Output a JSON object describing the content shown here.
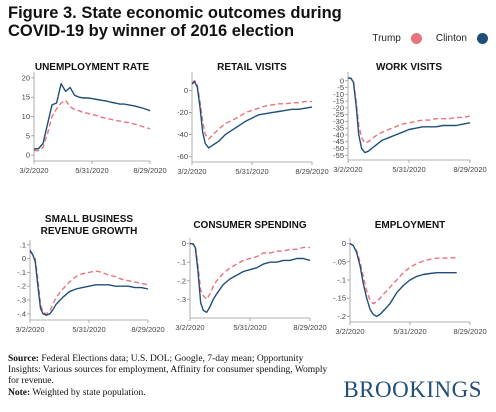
{
  "title": "Figure 3. State economic outcomes during COVID-19 by winner of 2016 election",
  "legend": {
    "trump_label": "Trump",
    "clinton_label": "Clinton"
  },
  "colors": {
    "trump": "#e8737a",
    "clinton": "#1f4e79"
  },
  "footer": {
    "source_label": "Source:",
    "source_text": "Federal Elections data; U.S. DOL; Google, 7-day mean; Opportunity Insights: Various sources for employment, Affinity for consumer spending, Womply for revenue.",
    "note_label": "Note:",
    "note_text": "Weighted by state population."
  },
  "logo": "BROOKINGS",
  "chart_data": [
    {
      "type": "line",
      "title": [
        "UNEMPLOYMENT RATE"
      ],
      "x_ticks": [
        "3/2/2020",
        "5/31/2020",
        "8/29/2020"
      ],
      "x": [
        0,
        7,
        14,
        21,
        28,
        35,
        42,
        49,
        56,
        63,
        70,
        77,
        84,
        91,
        98,
        105,
        112,
        119,
        126,
        133,
        140,
        147,
        154,
        161,
        168,
        175,
        180
      ],
      "ylim": [
        -1,
        21
      ],
      "yticks": [
        0,
        5,
        10,
        15,
        20
      ],
      "ytick_labels": [
        "0",
        "5",
        "10",
        "15",
        "20"
      ],
      "series": [
        {
          "name": "Trump",
          "values": [
            1.2,
            1.2,
            2,
            5.5,
            10,
            12,
            13.5,
            14.2,
            12.5,
            11.8,
            11.5,
            11,
            10.8,
            10.5,
            10.2,
            9.8,
            9.5,
            9.3,
            9,
            8.8,
            8.6,
            8.4,
            8.1,
            7.8,
            7.4,
            7.1,
            6.8
          ]
        },
        {
          "name": "Clinton",
          "values": [
            1.6,
            1.7,
            3,
            8,
            13,
            13.5,
            18.5,
            16.5,
            17.5,
            15.5,
            15,
            14.8,
            14.8,
            14.6,
            14.4,
            14.2,
            14,
            13.7,
            13.5,
            13.2,
            13.2,
            13,
            12.8,
            12.5,
            12.2,
            11.8,
            11.5
          ]
        }
      ]
    },
    {
      "type": "line",
      "title": [
        "RETAIL VISITS"
      ],
      "x_ticks": [
        "3/2/2020",
        "5/31/2020",
        "8/29/2020"
      ],
      "x": [
        0,
        4,
        8,
        12,
        16,
        20,
        25,
        30,
        35,
        40,
        50,
        60,
        70,
        80,
        90,
        100,
        110,
        120,
        130,
        140,
        150,
        160,
        170,
        180
      ],
      "ylim": [
        -63,
        15
      ],
      "yticks": [
        0,
        -20,
        -40,
        -60
      ],
      "ytick_labels": [
        "0",
        "-20",
        "-40",
        "-60"
      ],
      "series": [
        {
          "name": "Trump",
          "values": [
            7,
            9,
            5,
            -10,
            -28,
            -40,
            -44,
            -41,
            -38,
            -35,
            -30,
            -27,
            -24,
            -20,
            -18,
            -16,
            -14,
            -13,
            -12,
            -12,
            -11,
            -11,
            -10,
            -10
          ]
        },
        {
          "name": "Clinton",
          "values": [
            6,
            8,
            3,
            -15,
            -38,
            -48,
            -52,
            -50,
            -48,
            -46,
            -40,
            -36,
            -32,
            -28,
            -25,
            -22,
            -21,
            -20,
            -19,
            -18,
            -17,
            -17,
            -16,
            -15
          ]
        }
      ]
    },
    {
      "type": "line",
      "title": [
        "WORK VISITS"
      ],
      "x_ticks": [
        "3/2/2020",
        "5/31/2020",
        "8/29/2020"
      ],
      "x": [
        0,
        4,
        8,
        12,
        16,
        20,
        25,
        30,
        35,
        40,
        50,
        60,
        70,
        80,
        90,
        100,
        110,
        120,
        130,
        140,
        150,
        160,
        170,
        180
      ],
      "ylim": [
        -57,
        5
      ],
      "yticks": [
        0,
        -5,
        -10,
        -15,
        -20,
        -25,
        -30,
        -35,
        -40,
        -45,
        -50,
        -55
      ],
      "ytick_labels": [
        "0",
        "-5",
        "-10",
        "-15",
        "-20",
        "-25",
        "-30",
        "-35",
        "-40",
        "-45",
        "-50",
        "-55"
      ],
      "series": [
        {
          "name": "Trump",
          "values": [
            2,
            2,
            0,
            -15,
            -33,
            -42,
            -46,
            -45,
            -43,
            -41,
            -38,
            -36,
            -34,
            -32,
            -31,
            -30,
            -29,
            -29,
            -28,
            -28,
            -28,
            -27,
            -27,
            -26
          ]
        },
        {
          "name": "Clinton",
          "values": [
            2,
            2,
            -1,
            -18,
            -40,
            -50,
            -53,
            -52,
            -50,
            -48,
            -44,
            -42,
            -40,
            -38,
            -36,
            -35,
            -34,
            -34,
            -34,
            -33,
            -33,
            -33,
            -32,
            -31
          ]
        }
      ]
    },
    {
      "type": "line",
      "title": [
        "SMALL BUSINESS",
        "REVENUE GROWTH"
      ],
      "x_ticks": [
        "3/2/2020",
        "5/31/2020",
        "8/29/2020"
      ],
      "x": [
        0,
        4,
        8,
        12,
        16,
        20,
        25,
        30,
        35,
        40,
        50,
        60,
        70,
        80,
        90,
        100,
        110,
        120,
        130,
        140,
        150,
        160,
        170,
        180
      ],
      "ylim": [
        -0.43,
        0.12
      ],
      "yticks": [
        0.1,
        0,
        -0.1,
        -0.2,
        -0.3,
        -0.4
      ],
      "ytick_labels": [
        ".1",
        "0",
        "-.1",
        "-.2",
        "-.3",
        "-.4"
      ],
      "series": [
        {
          "name": "Trump",
          "values": [
            0.05,
            0.03,
            0,
            -0.15,
            -0.33,
            -0.39,
            -0.4,
            -0.38,
            -0.33,
            -0.28,
            -0.22,
            -0.17,
            -0.13,
            -0.11,
            -0.1,
            -0.09,
            -0.1,
            -0.12,
            -0.13,
            -0.15,
            -0.16,
            -0.17,
            -0.18,
            -0.19
          ]
        },
        {
          "name": "Clinton",
          "values": [
            0.06,
            0.03,
            -0.02,
            -0.2,
            -0.36,
            -0.4,
            -0.41,
            -0.4,
            -0.37,
            -0.33,
            -0.28,
            -0.24,
            -0.22,
            -0.21,
            -0.2,
            -0.19,
            -0.19,
            -0.19,
            -0.2,
            -0.2,
            -0.2,
            -0.21,
            -0.21,
            -0.22
          ]
        }
      ]
    },
    {
      "type": "line",
      "title": [
        "CONSUMER SPENDING"
      ],
      "x_ticks": [
        "3/2/2020",
        "5/31/2020",
        "8/29/2020"
      ],
      "x": [
        0,
        4,
        8,
        12,
        16,
        20,
        25,
        30,
        35,
        40,
        50,
        60,
        70,
        80,
        90,
        100,
        110,
        120,
        130,
        140,
        150,
        160,
        170,
        180
      ],
      "ylim": [
        -0.39,
        0.02
      ],
      "yticks": [
        0,
        -0.1,
        -0.2,
        -0.3
      ],
      "ytick_labels": [
        "0",
        "-.1",
        "-.2",
        "-.3"
      ],
      "series": [
        {
          "name": "Trump",
          "values": [
            0,
            0,
            -0.01,
            -0.12,
            -0.25,
            -0.28,
            -0.3,
            -0.27,
            -0.23,
            -0.2,
            -0.16,
            -0.13,
            -0.11,
            -0.09,
            -0.08,
            -0.07,
            -0.05,
            -0.05,
            -0.04,
            -0.04,
            -0.03,
            -0.03,
            -0.02,
            -0.02
          ]
        },
        {
          "name": "Clinton",
          "values": [
            0,
            0,
            -0.02,
            -0.15,
            -0.32,
            -0.36,
            -0.37,
            -0.34,
            -0.3,
            -0.27,
            -0.22,
            -0.19,
            -0.17,
            -0.15,
            -0.14,
            -0.13,
            -0.11,
            -0.1,
            -0.1,
            -0.09,
            -0.09,
            -0.08,
            -0.08,
            -0.09
          ]
        }
      ]
    },
    {
      "type": "line",
      "title": [
        "EMPLOYMENT"
      ],
      "x_ticks": [
        "3/2/2020",
        "5/31/2020",
        "8/29/2020"
      ],
      "x": [
        0,
        5,
        10,
        15,
        20,
        25,
        30,
        35,
        40,
        45,
        50,
        55,
        60,
        65,
        70,
        80,
        90,
        100,
        110,
        120,
        130,
        140,
        150,
        160
      ],
      "ylim": [
        -0.21,
        0.01
      ],
      "yticks": [
        0,
        -0.05,
        -0.1,
        -0.15,
        -0.2
      ],
      "ytick_labels": [
        "0",
        "-.05",
        "-.1",
        "-.15",
        "-.2"
      ],
      "series": [
        {
          "name": "Trump",
          "values": [
            0,
            -0.005,
            -0.02,
            -0.05,
            -0.09,
            -0.13,
            -0.155,
            -0.165,
            -0.16,
            -0.15,
            -0.14,
            -0.13,
            -0.12,
            -0.11,
            -0.1,
            -0.08,
            -0.065,
            -0.055,
            -0.048,
            -0.043,
            -0.04,
            -0.04,
            -0.039,
            -0.039
          ]
        },
        {
          "name": "Clinton",
          "values": [
            0,
            -0.005,
            -0.025,
            -0.06,
            -0.11,
            -0.15,
            -0.18,
            -0.195,
            -0.2,
            -0.195,
            -0.185,
            -0.175,
            -0.165,
            -0.15,
            -0.135,
            -0.115,
            -0.1,
            -0.09,
            -0.085,
            -0.082,
            -0.08,
            -0.08,
            -0.08,
            -0.08
          ]
        }
      ]
    }
  ]
}
